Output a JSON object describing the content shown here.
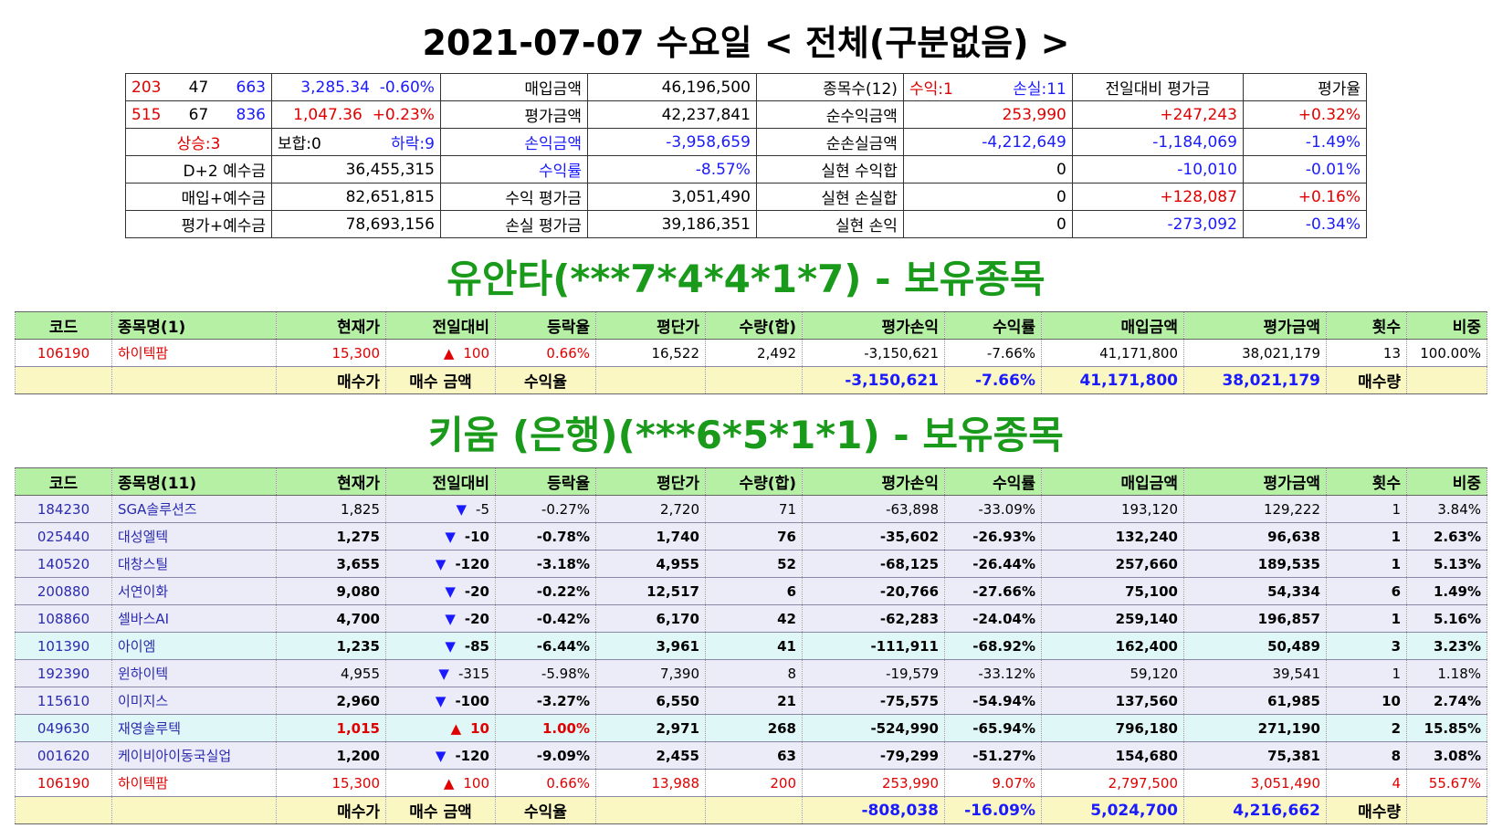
{
  "header": {
    "title": "2021-07-07 수요일 < 전체(구분없음) >"
  },
  "summary": {
    "r1": {
      "a": "203",
      "b": "47",
      "c": "663",
      "idx": "3,285.34",
      "chg": "-0.60%",
      "label1": "매입금액",
      "val1": "46,196,500",
      "label2": "종목수(12)",
      "win": "수익:1",
      "loss": "손실:11",
      "label3": "전일대비 평가금",
      "label4": "평가율"
    },
    "r2": {
      "a": "515",
      "b": "67",
      "c": "836",
      "idx": "1,047.36",
      "chg": "+0.23%",
      "label1": "평가금액",
      "val1": "42,237,841",
      "label2": "순수익금액",
      "val2": "253,990",
      "val3": "+247,243",
      "val4": "+0.32%"
    },
    "r3": {
      "up": "상승:3",
      "flat": "보합:0",
      "down": "하락:9",
      "label1": "손익금액",
      "val1": "-3,958,659",
      "label2": "순손실금액",
      "val2": "-4,212,649",
      "val3": "-1,184,069",
      "val4": "-1.49%"
    },
    "r4": {
      "label0": "D+2 예수금",
      "val0": "36,455,315",
      "label1": "수익률",
      "val1": "-8.57%",
      "label2": "실현 수익합",
      "val2": "0",
      "val3": "-10,010",
      "val4": "-0.01%"
    },
    "r5": {
      "label0": "매입+예수금",
      "val0": "82,651,815",
      "label1": "수익 평가금",
      "val1": "3,051,490",
      "label2": "실현 손실합",
      "val2": "0",
      "val3": "+128,087",
      "val4": "+0.16%"
    },
    "r6": {
      "label0": "평가+예수금",
      "val0": "78,693,156",
      "label1": "손실 평가금",
      "val1": "39,186,351",
      "label2": "실현 손익",
      "val2": "0",
      "val3": "-273,092",
      "val4": "-0.34%"
    }
  },
  "section1": {
    "title": "유안타(***7*4*4*1*7) - 보유종목",
    "headers": [
      "코드",
      "종목명(1)",
      "현재가",
      "전일대비",
      "등락율",
      "평단가",
      "수량(합)",
      "평가손익",
      "수익률",
      "매입금액",
      "평가금액",
      "횟수",
      "비중"
    ],
    "rows": [
      {
        "code": "106190",
        "name": "하이텍팜",
        "price": "15,300",
        "dir": "▲",
        "diff": "100",
        "rate": "0.66%",
        "avg": "16,522",
        "qty": "2,492",
        "pl": "-3,150,621",
        "ret": "-7.66%",
        "buy": "41,171,800",
        "eval": "38,021,179",
        "cnt": "13",
        "weight": "100.00%"
      }
    ],
    "footer": {
      "l1": "매수가",
      "l2": "매수 금액",
      "l3": "수익율",
      "pl": "-3,150,621",
      "ret": "-7.66%",
      "buy": "41,171,800",
      "eval": "38,021,179",
      "l4": "매수량"
    }
  },
  "section2": {
    "title": "키움 (은행)(***6*5*1*1) - 보유종목",
    "headers": [
      "코드",
      "종목명(11)",
      "현재가",
      "전일대비",
      "등락율",
      "평단가",
      "수량(합)",
      "평가손익",
      "수익률",
      "매입금액",
      "평가금액",
      "횟수",
      "비중"
    ],
    "rows": [
      {
        "code": "184230",
        "name": "SGA솔루션즈",
        "price": "1,825",
        "dir": "▼",
        "diff": "-5",
        "rate": "-0.27%",
        "avg": "2,720",
        "qty": "71",
        "pl": "-63,898",
        "ret": "-33.09%",
        "buy": "193,120",
        "eval": "129,222",
        "cnt": "1",
        "weight": "3.84%"
      },
      {
        "code": "025440",
        "name": "대성엘텍",
        "price": "1,275",
        "dir": "▼",
        "diff": "-10",
        "rate": "-0.78%",
        "avg": "1,740",
        "qty": "76",
        "pl": "-35,602",
        "ret": "-26.93%",
        "buy": "132,240",
        "eval": "96,638",
        "cnt": "1",
        "weight": "2.63%"
      },
      {
        "code": "140520",
        "name": "대창스틸",
        "price": "3,655",
        "dir": "▼",
        "diff": "-120",
        "rate": "-3.18%",
        "avg": "4,955",
        "qty": "52",
        "pl": "-68,125",
        "ret": "-26.44%",
        "buy": "257,660",
        "eval": "189,535",
        "cnt": "1",
        "weight": "5.13%"
      },
      {
        "code": "200880",
        "name": "서연이화",
        "price": "9,080",
        "dir": "▼",
        "diff": "-20",
        "rate": "-0.22%",
        "avg": "12,517",
        "qty": "6",
        "pl": "-20,766",
        "ret": "-27.66%",
        "buy": "75,100",
        "eval": "54,334",
        "cnt": "6",
        "weight": "1.49%"
      },
      {
        "code": "108860",
        "name": "셀바스AI",
        "price": "4,700",
        "dir": "▼",
        "diff": "-20",
        "rate": "-0.42%",
        "avg": "6,170",
        "qty": "42",
        "pl": "-62,283",
        "ret": "-24.04%",
        "buy": "259,140",
        "eval": "196,857",
        "cnt": "1",
        "weight": "5.16%"
      },
      {
        "code": "101390",
        "name": "아이엠",
        "price": "1,235",
        "dir": "▼",
        "diff": "-85",
        "rate": "-6.44%",
        "avg": "3,961",
        "qty": "41",
        "pl": "-111,911",
        "ret": "-68.92%",
        "buy": "162,400",
        "eval": "50,489",
        "cnt": "3",
        "weight": "3.23%"
      },
      {
        "code": "192390",
        "name": "윈하이텍",
        "price": "4,955",
        "dir": "▼",
        "diff": "-315",
        "rate": "-5.98%",
        "avg": "7,390",
        "qty": "8",
        "pl": "-19,579",
        "ret": "-33.12%",
        "buy": "59,120",
        "eval": "39,541",
        "cnt": "1",
        "weight": "1.18%"
      },
      {
        "code": "115610",
        "name": "이미지스",
        "price": "2,960",
        "dir": "▼",
        "diff": "-100",
        "rate": "-3.27%",
        "avg": "6,550",
        "qty": "21",
        "pl": "-75,575",
        "ret": "-54.94%",
        "buy": "137,560",
        "eval": "61,985",
        "cnt": "10",
        "weight": "2.74%"
      },
      {
        "code": "049630",
        "name": "재영솔루텍",
        "price": "1,015",
        "dir": "▲",
        "diff": "10",
        "rate": "1.00%",
        "avg": "2,971",
        "qty": "268",
        "pl": "-524,990",
        "ret": "-65.94%",
        "buy": "796,180",
        "eval": "271,190",
        "cnt": "2",
        "weight": "15.85%"
      },
      {
        "code": "001620",
        "name": "케이비아이동국실업",
        "price": "1,200",
        "dir": "▼",
        "diff": "-120",
        "rate": "-9.09%",
        "avg": "2,455",
        "qty": "63",
        "pl": "-79,299",
        "ret": "-51.27%",
        "buy": "154,680",
        "eval": "75,381",
        "cnt": "8",
        "weight": "3.08%"
      },
      {
        "code": "106190",
        "name": "하이텍팜",
        "price": "15,300",
        "dir": "▲",
        "diff": "100",
        "rate": "0.66%",
        "avg": "13,988",
        "qty": "200",
        "pl": "253,990",
        "ret": "9.07%",
        "buy": "2,797,500",
        "eval": "3,051,490",
        "cnt": "4",
        "weight": "55.67%"
      }
    ],
    "footer": {
      "l1": "매수가",
      "l2": "매수 금액",
      "l3": "수익율",
      "pl": "-808,038",
      "ret": "-16.09%",
      "buy": "5,024,700",
      "eval": "4,216,662",
      "l4": "매수량"
    }
  }
}
